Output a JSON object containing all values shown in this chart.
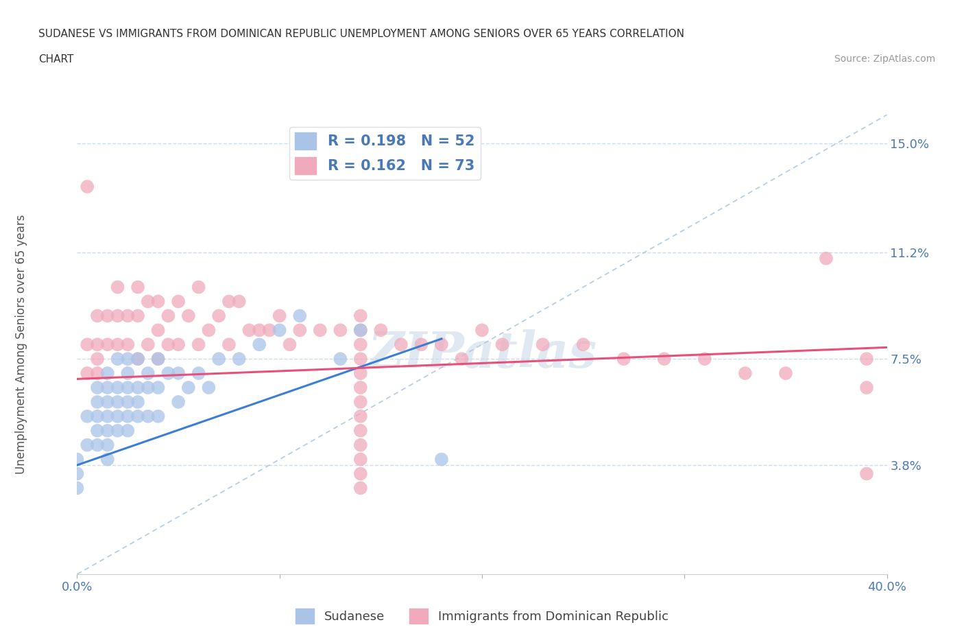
{
  "title_line1": "SUDANESE VS IMMIGRANTS FROM DOMINICAN REPUBLIC UNEMPLOYMENT AMONG SENIORS OVER 65 YEARS CORRELATION",
  "title_line2": "CHART",
  "source": "Source: ZipAtlas.com",
  "ylabel": "Unemployment Among Seniors over 65 years",
  "xlim": [
    0.0,
    0.4
  ],
  "ylim": [
    0.0,
    0.16
  ],
  "ytick_vals": [
    0.038,
    0.075,
    0.112,
    0.15
  ],
  "ytick_labels": [
    "3.8%",
    "7.5%",
    "11.2%",
    "15.0%"
  ],
  "xtick_vals": [
    0.0,
    0.1,
    0.2,
    0.3,
    0.4
  ],
  "xtick_labels": [
    "0.0%",
    "",
    "",
    "",
    "40.0%"
  ],
  "blue_color": "#aac4e8",
  "pink_color": "#f0aabb",
  "trend_blue_color": "#3a7fd5",
  "trend_pink_color": "#e8507a",
  "diag_color": "#b0c8e0",
  "text_color": "#4a7ab5",
  "R_blue": 0.198,
  "N_blue": 52,
  "R_pink": 0.162,
  "N_pink": 73,
  "blue_trend_x0": 0.0,
  "blue_trend_y0": 0.038,
  "blue_trend_x1": 0.18,
  "blue_trend_y1": 0.082,
  "pink_trend_x0": 0.0,
  "pink_trend_y0": 0.068,
  "pink_trend_x1": 0.4,
  "pink_trend_y1": 0.079,
  "sudanese_x": [
    0.0,
    0.0,
    0.0,
    0.005,
    0.005,
    0.01,
    0.01,
    0.01,
    0.01,
    0.01,
    0.015,
    0.015,
    0.015,
    0.015,
    0.015,
    0.015,
    0.015,
    0.02,
    0.02,
    0.02,
    0.02,
    0.02,
    0.025,
    0.025,
    0.025,
    0.025,
    0.025,
    0.025,
    0.03,
    0.03,
    0.03,
    0.03,
    0.035,
    0.035,
    0.035,
    0.04,
    0.04,
    0.04,
    0.045,
    0.05,
    0.05,
    0.055,
    0.06,
    0.065,
    0.07,
    0.08,
    0.09,
    0.1,
    0.11,
    0.13,
    0.14,
    0.18
  ],
  "sudanese_y": [
    0.04,
    0.035,
    0.03,
    0.055,
    0.045,
    0.065,
    0.06,
    0.055,
    0.05,
    0.045,
    0.07,
    0.065,
    0.06,
    0.055,
    0.05,
    0.045,
    0.04,
    0.075,
    0.065,
    0.06,
    0.055,
    0.05,
    0.075,
    0.07,
    0.065,
    0.06,
    0.055,
    0.05,
    0.075,
    0.065,
    0.06,
    0.055,
    0.07,
    0.065,
    0.055,
    0.075,
    0.065,
    0.055,
    0.07,
    0.07,
    0.06,
    0.065,
    0.07,
    0.065,
    0.075,
    0.075,
    0.08,
    0.085,
    0.09,
    0.075,
    0.085,
    0.04
  ],
  "dominican_x": [
    0.005,
    0.005,
    0.005,
    0.01,
    0.01,
    0.01,
    0.01,
    0.015,
    0.015,
    0.02,
    0.02,
    0.02,
    0.025,
    0.025,
    0.03,
    0.03,
    0.03,
    0.035,
    0.035,
    0.04,
    0.04,
    0.04,
    0.045,
    0.045,
    0.05,
    0.05,
    0.055,
    0.06,
    0.06,
    0.065,
    0.07,
    0.075,
    0.075,
    0.08,
    0.085,
    0.09,
    0.095,
    0.1,
    0.105,
    0.11,
    0.12,
    0.13,
    0.14,
    0.15,
    0.16,
    0.17,
    0.18,
    0.19,
    0.2,
    0.21,
    0.23,
    0.25,
    0.27,
    0.29,
    0.31,
    0.33,
    0.35,
    0.37,
    0.39,
    0.39,
    0.39,
    0.14,
    0.14,
    0.14,
    0.14,
    0.14,
    0.14,
    0.14,
    0.14,
    0.14,
    0.14,
    0.14,
    0.14
  ],
  "dominican_y": [
    0.135,
    0.08,
    0.07,
    0.09,
    0.08,
    0.075,
    0.07,
    0.09,
    0.08,
    0.1,
    0.09,
    0.08,
    0.09,
    0.08,
    0.1,
    0.09,
    0.075,
    0.095,
    0.08,
    0.095,
    0.085,
    0.075,
    0.09,
    0.08,
    0.095,
    0.08,
    0.09,
    0.1,
    0.08,
    0.085,
    0.09,
    0.095,
    0.08,
    0.095,
    0.085,
    0.085,
    0.085,
    0.09,
    0.08,
    0.085,
    0.085,
    0.085,
    0.085,
    0.085,
    0.08,
    0.08,
    0.08,
    0.075,
    0.085,
    0.08,
    0.08,
    0.08,
    0.075,
    0.075,
    0.075,
    0.07,
    0.07,
    0.11,
    0.075,
    0.065,
    0.035,
    0.09,
    0.08,
    0.075,
    0.07,
    0.065,
    0.06,
    0.055,
    0.05,
    0.045,
    0.04,
    0.035,
    0.03
  ],
  "watermark_text": "ZIPatlas",
  "background_color": "#ffffff",
  "grid_color": "#c8d8ea",
  "legend_fontsize": 15,
  "axis_label_fontsize": 12,
  "tick_fontsize": 13
}
